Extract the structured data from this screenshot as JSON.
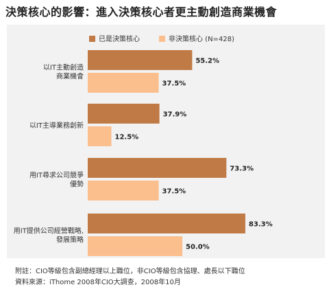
{
  "title": "決策核心的影響：進入決策核心者更主動創造商業機會",
  "colors": {
    "series1": "#c07a45",
    "series2": "#fbbf8e",
    "panel": "#f2f2f2"
  },
  "chart_data": {
    "type": "bar",
    "orientation": "horizontal",
    "categories": [
      [
        "以IT主動創造",
        "商業機會"
      ],
      [
        "以IT主導業務創新"
      ],
      [
        "用IT尋求公司競爭",
        "優勢"
      ],
      [
        "用IT提供公司經營戰略,",
        "發展策略"
      ]
    ],
    "series": [
      {
        "name": "已是決策核心",
        "values": [
          55.2,
          37.9,
          73.3,
          83.3
        ],
        "labels": [
          "55.2%",
          "37.9%",
          "73.3%",
          "83.3%"
        ]
      },
      {
        "name": "非決策核心 (N=428)",
        "values": [
          37.5,
          12.5,
          37.5,
          50.0
        ],
        "labels": [
          "37.5%",
          "12.5%",
          "37.5%",
          "50.0%"
        ]
      }
    ],
    "xlim": [
      0,
      100
    ],
    "grid": false,
    "legend": "top"
  },
  "footnotes": [
    "附註：CIO等級包含副總經理以上職位，非CIO等級包含協理、處長以下職位",
    "資料來源：iThome 2008年CIO大調查，2008年10月"
  ]
}
